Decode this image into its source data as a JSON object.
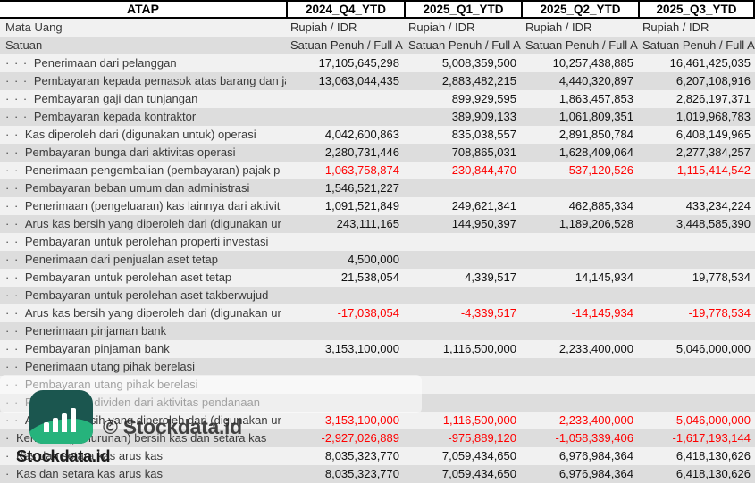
{
  "header": {
    "ticker": "ATAP",
    "columns": [
      "2024_Q4_YTD",
      "2025_Q1_YTD",
      "2025_Q2_YTD",
      "2025_Q3_YTD"
    ]
  },
  "currency": {
    "label": "Mata Uang",
    "values": [
      "Rupiah / IDR",
      "Rupiah / IDR",
      "Rupiah / IDR",
      "Rupiah / IDR"
    ]
  },
  "unit": {
    "label": "Satuan",
    "values": [
      "Satuan Penuh / Full A",
      "Satuan Penuh / Full A",
      "Satuan Penuh / Full A",
      "Satuan Penuh / Full A"
    ]
  },
  "rows": [
    {
      "dots": 3,
      "label": "Penerimaan dari pelanggan",
      "values": [
        "17,105,645,298",
        "5,008,359,500",
        "10,257,438,885",
        "16,461,425,035"
      ]
    },
    {
      "dots": 3,
      "label": "Pembayaran kepada pemasok atas barang dan ja",
      "values": [
        "13,063,044,435",
        "2,883,482,215",
        "4,440,320,897",
        "6,207,108,916"
      ]
    },
    {
      "dots": 3,
      "label": "Pembayaran gaji dan tunjangan",
      "values": [
        "",
        "899,929,595",
        "1,863,457,853",
        "2,826,197,371"
      ]
    },
    {
      "dots": 3,
      "label": "Pembayaran kepada kontraktor",
      "values": [
        "",
        "389,909,133",
        "1,061,809,351",
        "1,019,968,783"
      ]
    },
    {
      "dots": 2,
      "label": "Kas diperoleh dari (digunakan untuk) operasi",
      "values": [
        "4,042,600,863",
        "835,038,557",
        "2,891,850,784",
        "6,408,149,965"
      ]
    },
    {
      "dots": 2,
      "label": "Pembayaran bunga dari aktivitas operasi",
      "values": [
        "2,280,731,446",
        "708,865,031",
        "1,628,409,064",
        "2,277,384,257"
      ]
    },
    {
      "dots": 2,
      "label": "Penerimaan pengembalian (pembayaran) pajak p",
      "values": [
        "-1,063,758,874",
        "-230,844,470",
        "-537,120,526",
        "-1,115,414,542"
      ]
    },
    {
      "dots": 2,
      "label": "Pembayaran beban umum dan administrasi",
      "values": [
        "1,546,521,227",
        "",
        "",
        ""
      ]
    },
    {
      "dots": 2,
      "label": "Penerimaan (pengeluaran) kas lainnya dari aktivit",
      "values": [
        "1,091,521,849",
        "249,621,341",
        "462,885,334",
        "433,234,224"
      ]
    },
    {
      "dots": 2,
      "label": "Arus kas bersih yang diperoleh dari (digunakan ur",
      "values": [
        "243,111,165",
        "144,950,397",
        "1,189,206,528",
        "3,448,585,390"
      ]
    },
    {
      "dots": 2,
      "label": "Pembayaran untuk perolehan properti investasi",
      "values": [
        "",
        "",
        "",
        ""
      ]
    },
    {
      "dots": 2,
      "label": "Penerimaan dari penjualan aset tetap",
      "values": [
        "4,500,000",
        "",
        "",
        ""
      ]
    },
    {
      "dots": 2,
      "label": "Pembayaran untuk perolehan aset tetap",
      "values": [
        "21,538,054",
        "4,339,517",
        "14,145,934",
        "19,778,534"
      ]
    },
    {
      "dots": 2,
      "label": "Pembayaran untuk perolehan aset takberwujud",
      "values": [
        "",
        "",
        "",
        ""
      ]
    },
    {
      "dots": 2,
      "label": "Arus kas bersih yang diperoleh dari (digunakan ur",
      "values": [
        "-17,038,054",
        "-4,339,517",
        "-14,145,934",
        "-19,778,534"
      ]
    },
    {
      "dots": 2,
      "label": "Penerimaan pinjaman bank",
      "values": [
        "",
        "",
        "",
        ""
      ]
    },
    {
      "dots": 2,
      "label": "Pembayaran pinjaman bank",
      "values": [
        "3,153,100,000",
        "1,116,500,000",
        "2,233,400,000",
        "5,046,000,000"
      ]
    },
    {
      "dots": 2,
      "label": "Penerimaan utang pihak berelasi",
      "values": [
        "",
        "",
        "",
        ""
      ]
    },
    {
      "dots": 2,
      "label": "Pembayaran utang pihak berelasi",
      "values": [
        "",
        "",
        "",
        ""
      ]
    },
    {
      "dots": 2,
      "label": "Pembayaran dividen dari aktivitas pendanaan",
      "values": [
        "",
        "",
        "",
        ""
      ]
    },
    {
      "dots": 2,
      "label": "Arus kas bersih yang diperoleh dari (digunakan ur",
      "values": [
        "-3,153,100,000",
        "-1,116,500,000",
        "-2,233,400,000",
        "-5,046,000,000"
      ]
    },
    {
      "dots": 1,
      "label": "Kenaikan (penurunan) bersih kas dan setara kas",
      "values": [
        "-2,927,026,889",
        "-975,889,120",
        "-1,058,339,406",
        "-1,617,193,144"
      ]
    },
    {
      "dots": 1,
      "label": "Kas dan setara kas arus kas",
      "values": [
        "8,035,323,770",
        "7,059,434,650",
        "6,976,984,364",
        "6,418,130,626"
      ]
    },
    {
      "dots": 1,
      "label": "Kas dan setara kas arus kas",
      "values": [
        "8,035,323,770",
        "7,059,434,650",
        "6,976,984,364",
        "6,418,130,626"
      ]
    }
  ],
  "watermark": {
    "wordmark": "Stockdata.id",
    "copyright": "© Stockdata.id"
  },
  "colors": {
    "negative": "#ff0000",
    "stripe_light": "#f1f1f1",
    "stripe_dark": "#dddddd",
    "logo_dark_teal": "#1b564f",
    "logo_green": "#26b37c"
  }
}
